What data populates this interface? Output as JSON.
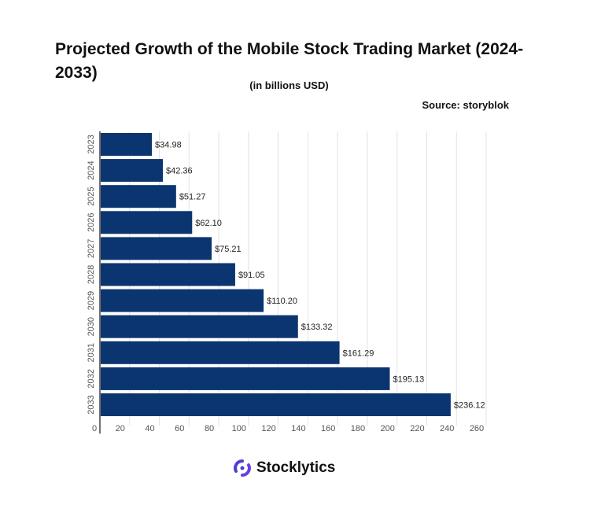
{
  "chart_data": {
    "type": "bar",
    "orientation": "horizontal",
    "title": "Projected Growth of the Mobile Stock Trading Market (2024-2033)",
    "subtitle": "(in billions USD)",
    "source": "Source: storyblok",
    "categories": [
      "2023",
      "2024",
      "2025",
      "2026",
      "2027",
      "2028",
      "2029",
      "2030",
      "2031",
      "2032",
      "2033"
    ],
    "values": [
      34.98,
      42.36,
      51.27,
      62.1,
      75.21,
      91.05,
      110.2,
      133.32,
      161.29,
      195.13,
      236.12
    ],
    "data_labels": [
      "$34.98",
      "$42.36",
      "$51.27",
      "$62.10",
      "$75.21",
      "$91.05",
      "$110.20",
      "$133.32",
      "$161.29",
      "$195.13",
      "$236.12"
    ],
    "xlim": [
      0,
      260
    ],
    "x_ticks": [
      0,
      20,
      40,
      60,
      80,
      100,
      120,
      140,
      160,
      180,
      200,
      220,
      240,
      260
    ],
    "grid": true,
    "bar_color": "#0b3570"
  },
  "logo": {
    "text": "Stocklytics",
    "color": "#4b3fd6"
  }
}
